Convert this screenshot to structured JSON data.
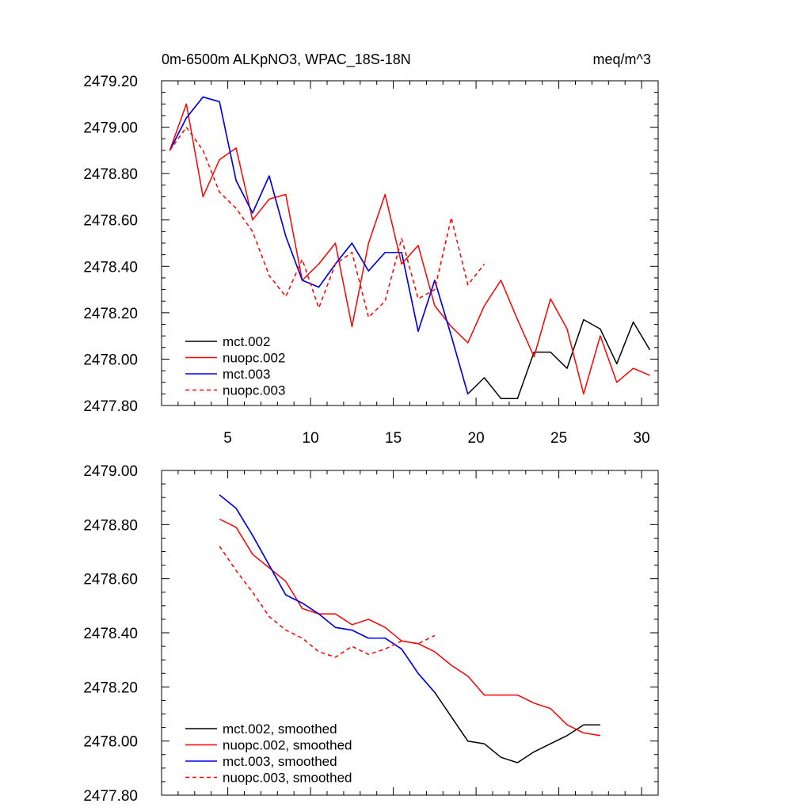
{
  "chart_data": [
    {
      "type": "line",
      "title": "0m-6500m ALKpNO3, WPAC_18S-18N",
      "units": "meq/m^3",
      "xlabel": "",
      "ylabel": "",
      "xlim": [
        1,
        31
      ],
      "ylim": [
        2477.8,
        2479.2
      ],
      "x_ticks": [
        5,
        10,
        15,
        20,
        25,
        30
      ],
      "x_tick_labels": [
        "5",
        "10",
        "15",
        "20",
        "25",
        "30"
      ],
      "y_ticks": [
        2477.8,
        2478.0,
        2478.2,
        2478.4,
        2478.6,
        2478.8,
        2479.0,
        2479.2
      ],
      "y_tick_labels": [
        "2477.80",
        "2478.00",
        "2478.20",
        "2478.40",
        "2478.60",
        "2478.80",
        "2479.00",
        "2479.20"
      ],
      "legend_position": "bottom-left",
      "series": [
        {
          "name": "mct.002",
          "color": "#000000",
          "dash": "solid",
          "x": [
            1.5,
            2.5,
            3.5,
            4.5,
            5.5,
            6.5,
            7.5,
            8.5,
            9.5,
            10.5,
            11.5,
            12.5,
            13.5,
            14.5,
            15.5,
            16.5,
            17.5,
            18.5,
            19.5,
            20.5,
            21.5,
            22.5,
            23.5,
            24.5,
            25.5,
            26.5,
            27.5,
            28.5,
            29.5,
            30.5
          ],
          "values": [
            2478.9,
            2479.04,
            2479.13,
            2479.11,
            2478.77,
            2478.63,
            2478.79,
            2478.53,
            2478.34,
            2478.31,
            2478.41,
            2478.5,
            2478.38,
            2478.46,
            2478.46,
            2478.12,
            2478.34,
            2478.1,
            2477.85,
            2477.92,
            2477.83,
            2477.83,
            2478.03,
            2478.03,
            2477.96,
            2478.17,
            2478.13,
            2477.98,
            2478.16,
            2478.04
          ]
        },
        {
          "name": "nuopc.002",
          "color": "#ff0000",
          "dash": "solid",
          "x": [
            1.5,
            2.5,
            3.5,
            4.5,
            5.5,
            6.5,
            7.5,
            8.5,
            9.5,
            10.5,
            11.5,
            12.5,
            13.5,
            14.5,
            15.5,
            16.5,
            17.5,
            18.5,
            19.5,
            20.5,
            21.5,
            22.5,
            23.5,
            24.5,
            25.5,
            26.5,
            27.5,
            28.5,
            29.5,
            30.5
          ],
          "values": [
            2478.9,
            2479.1,
            2478.7,
            2478.86,
            2478.91,
            2478.6,
            2478.69,
            2478.71,
            2478.34,
            2478.41,
            2478.5,
            2478.14,
            2478.5,
            2478.71,
            2478.41,
            2478.49,
            2478.23,
            2478.14,
            2478.07,
            2478.23,
            2478.34,
            2478.17,
            2478.01,
            2478.26,
            2478.13,
            2477.85,
            2478.1,
            2477.9,
            2477.96,
            2477.93
          ]
        },
        {
          "name": "mct.003",
          "color": "#0000ff",
          "dash": "solid",
          "x": [
            1.5,
            2.5,
            3.5,
            4.5,
            5.5,
            6.5,
            7.5,
            8.5,
            9.5,
            10.5,
            11.5,
            12.5,
            13.5,
            14.5,
            15.5,
            16.5,
            17.5,
            18.5,
            19.5
          ],
          "values": [
            2478.9,
            2479.04,
            2479.13,
            2479.11,
            2478.77,
            2478.63,
            2478.79,
            2478.53,
            2478.34,
            2478.31,
            2478.41,
            2478.5,
            2478.38,
            2478.46,
            2478.46,
            2478.12,
            2478.34,
            2478.1,
            2477.85
          ]
        },
        {
          "name": "nuopc.003",
          "color": "#ff0000",
          "dash": "dashed",
          "x": [
            1.5,
            2.5,
            3.5,
            4.5,
            5.5,
            6.5,
            7.5,
            8.5,
            9.5,
            10.5,
            11.5,
            12.5,
            13.5,
            14.5,
            15.5,
            16.5,
            17.5,
            18.5,
            19.5,
            20.5
          ],
          "values": [
            2478.9,
            2479.0,
            2478.9,
            2478.72,
            2478.65,
            2478.55,
            2478.36,
            2478.27,
            2478.43,
            2478.22,
            2478.41,
            2478.46,
            2478.18,
            2478.25,
            2478.52,
            2478.26,
            2478.3,
            2478.61,
            2478.32,
            2478.41
          ]
        }
      ]
    },
    {
      "type": "line",
      "title": "",
      "xlabel": "",
      "ylabel": "",
      "xlim": [
        1,
        31
      ],
      "ylim": [
        2477.8,
        2479.0
      ],
      "x_ticks": [
        5,
        10,
        15,
        20,
        25,
        30
      ],
      "x_tick_labels": [],
      "y_ticks": [
        2477.8,
        2478.0,
        2478.2,
        2478.4,
        2478.6,
        2478.8,
        2479.0
      ],
      "y_tick_labels": [
        "2477.80",
        "2478.00",
        "2478.20",
        "2478.40",
        "2478.60",
        "2478.80",
        "2479.00"
      ],
      "legend_position": "bottom-left",
      "series": [
        {
          "name": "mct.002, smoothed",
          "color": "#000000",
          "dash": "solid",
          "x": [
            4.5,
            5.5,
            6.5,
            7.5,
            8.5,
            9.5,
            10.5,
            11.5,
            12.5,
            13.5,
            14.5,
            15.5,
            16.5,
            17.5,
            18.5,
            19.5,
            20.5,
            21.5,
            22.5,
            23.5,
            24.5,
            25.5,
            26.5,
            27.5
          ],
          "values": [
            2478.91,
            2478.86,
            2478.76,
            2478.65,
            2478.54,
            2478.51,
            2478.47,
            2478.42,
            2478.41,
            2478.38,
            2478.38,
            2478.34,
            2478.25,
            2478.18,
            2478.09,
            2478.0,
            2477.99,
            2477.94,
            2477.92,
            2477.96,
            2477.99,
            2478.02,
            2478.06,
            2478.06
          ]
        },
        {
          "name": "nuopc.002, smoothed",
          "color": "#ff0000",
          "dash": "solid",
          "x": [
            4.5,
            5.5,
            6.5,
            7.5,
            8.5,
            9.5,
            10.5,
            11.5,
            12.5,
            13.5,
            14.5,
            15.5,
            16.5,
            17.5,
            18.5,
            19.5,
            20.5,
            21.5,
            22.5,
            23.5,
            24.5,
            25.5,
            26.5,
            27.5
          ],
          "values": [
            2478.82,
            2478.79,
            2478.69,
            2478.64,
            2478.59,
            2478.49,
            2478.47,
            2478.47,
            2478.43,
            2478.45,
            2478.42,
            2478.37,
            2478.36,
            2478.33,
            2478.28,
            2478.24,
            2478.17,
            2478.17,
            2478.17,
            2478.14,
            2478.12,
            2478.06,
            2478.03,
            2478.02
          ]
        },
        {
          "name": "mct.003, smoothed",
          "color": "#0000ff",
          "dash": "solid",
          "x": [
            4.5,
            5.5,
            6.5,
            7.5,
            8.5,
            9.5,
            10.5,
            11.5,
            12.5,
            13.5,
            14.5,
            15.5,
            16.5,
            17.5
          ],
          "values": [
            2478.91,
            2478.86,
            2478.76,
            2478.65,
            2478.54,
            2478.51,
            2478.47,
            2478.42,
            2478.41,
            2478.38,
            2478.38,
            2478.34,
            2478.25,
            2478.18
          ]
        },
        {
          "name": "nuopc.003, smoothed",
          "color": "#ff0000",
          "dash": "dashed",
          "x": [
            4.5,
            5.5,
            6.5,
            7.5,
            8.5,
            9.5,
            10.5,
            11.5,
            12.5,
            13.5,
            14.5,
            15.5,
            16.5,
            17.5
          ],
          "values": [
            2478.72,
            2478.63,
            2478.55,
            2478.46,
            2478.41,
            2478.38,
            2478.33,
            2478.31,
            2478.35,
            2478.32,
            2478.34,
            2478.37,
            2478.36,
            2478.39
          ]
        }
      ]
    }
  ]
}
